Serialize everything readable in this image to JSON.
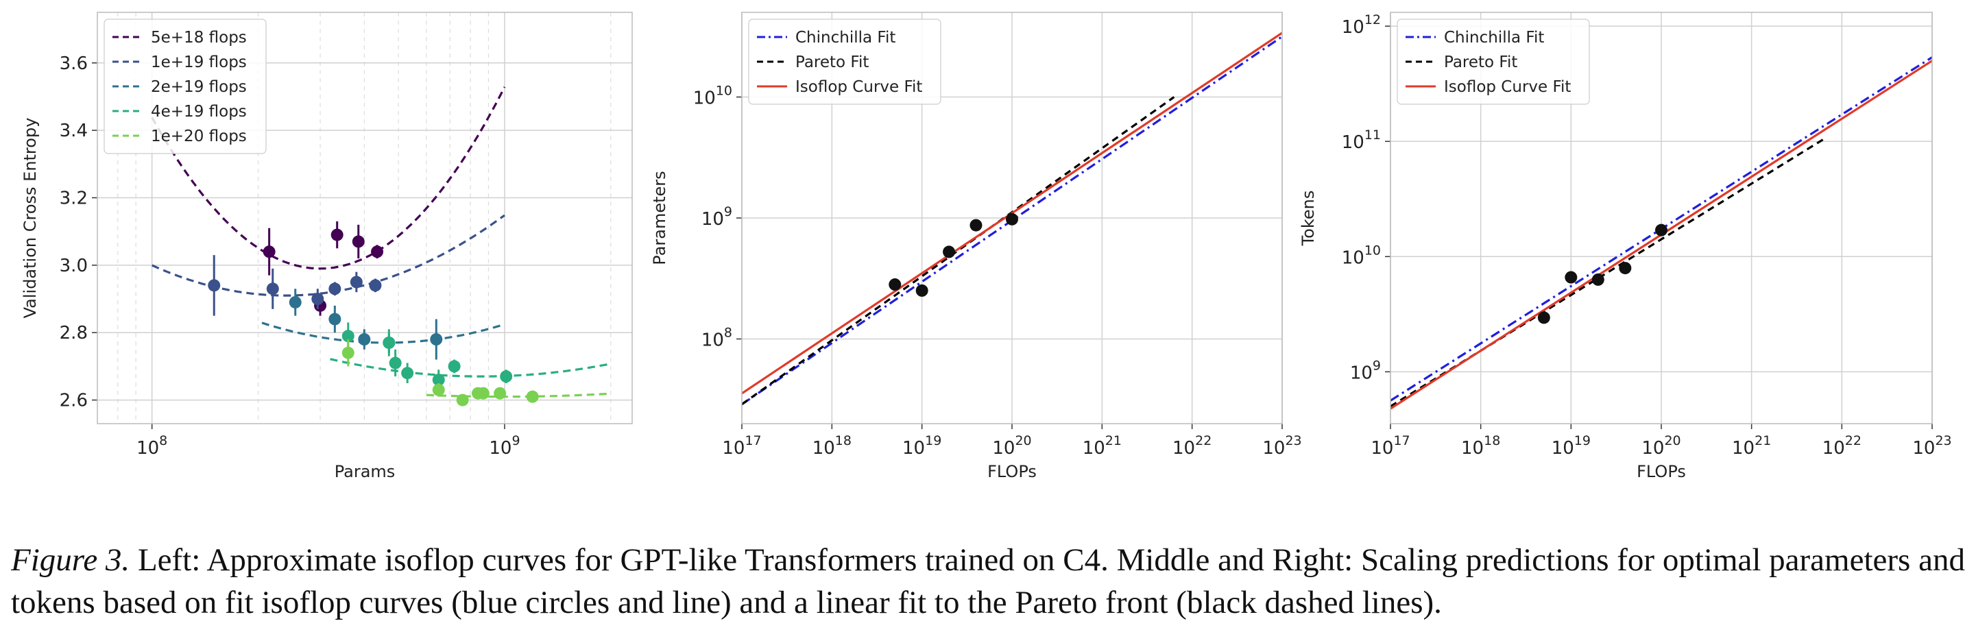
{
  "caption": {
    "lead": "Figure 3.",
    "text": " Left: Approximate isoflop curves for GPT-like Transformers trained on C4. Middle and Right: Scaling predictions for optimal parameters and tokens based on fit isoflop curves (blue circles and line) and a linear fit to the Pareto front (black dashed lines)."
  },
  "chart_data": [
    {
      "type": "scatter",
      "title": "",
      "xlabel": "Params",
      "ylabel": "Validation Cross Entropy",
      "xscale": "log",
      "yscale": "linear",
      "xlim": [
        70000000,
        2300000000
      ],
      "ylim": [
        2.53,
        3.75
      ],
      "xticks": [
        {
          "value": 100000000,
          "base": "10",
          "exp": "8"
        },
        {
          "value": 1000000000,
          "base": "10",
          "exp": "9"
        }
      ],
      "yticks": [
        2.6,
        2.8,
        3.0,
        3.2,
        3.4,
        3.6
      ],
      "ytick_labels": [
        "2.6",
        "2.8",
        "3.0",
        "3.2",
        "3.4",
        "3.6"
      ],
      "grid": true,
      "legend": "upper-left",
      "series": [
        {
          "name": "5e+18 flops",
          "color": "#440154",
          "curve": {
            "x0": 300000000,
            "y0": 2.99,
            "k": 1.97,
            "xmin": 100000000,
            "xmax": 1000000000
          },
          "points": [
            {
              "x": 215000000,
              "y": 3.04,
              "err": 0.07
            },
            {
              "x": 300000000,
              "y": 2.88,
              "err": 0.03
            },
            {
              "x": 335000000,
              "y": 3.09,
              "err": 0.04
            },
            {
              "x": 385000000,
              "y": 3.07,
              "err": 0.05
            },
            {
              "x": 435000000,
              "y": 3.04,
              "err": 0.02
            }
          ]
        },
        {
          "name": "1e+19 flops",
          "color": "#3b518b",
          "curve": {
            "x0": 240000000,
            "y0": 2.91,
            "k": 0.62,
            "xmin": 100000000,
            "xmax": 1000000000
          },
          "points": [
            {
              "x": 150000000,
              "y": 2.94,
              "err": 0.09
            },
            {
              "x": 220000000,
              "y": 2.93,
              "err": 0.06
            },
            {
              "x": 295000000,
              "y": 2.9,
              "err": 0.03
            },
            {
              "x": 330000000,
              "y": 2.93,
              "err": 0.02
            },
            {
              "x": 380000000,
              "y": 2.95,
              "err": 0.03
            },
            {
              "x": 430000000,
              "y": 2.94,
              "err": 0.02
            }
          ]
        },
        {
          "name": "2e+19 flops",
          "color": "#2c728e",
          "curve": {
            "x0": 460000000,
            "y0": 2.77,
            "k": 0.48,
            "xmin": 205000000,
            "xmax": 1000000000
          },
          "points": [
            {
              "x": 255000000,
              "y": 2.89,
              "err": 0.04
            },
            {
              "x": 330000000,
              "y": 2.84,
              "err": 0.04
            },
            {
              "x": 400000000,
              "y": 2.78,
              "err": 0.03
            },
            {
              "x": 470000000,
              "y": 2.77,
              "err": 0.03
            },
            {
              "x": 640000000,
              "y": 2.78,
              "err": 0.06
            }
          ]
        },
        {
          "name": "4e+19 flops",
          "color": "#29ae80",
          "curve": {
            "x0": 860000000,
            "y0": 2.67,
            "k": 0.28,
            "xmin": 320000000,
            "xmax": 2000000000
          },
          "points": [
            {
              "x": 360000000,
              "y": 2.79,
              "err": 0.04
            },
            {
              "x": 470000000,
              "y": 2.77,
              "err": 0.04
            },
            {
              "x": 490000000,
              "y": 2.71,
              "err": 0.04
            },
            {
              "x": 530000000,
              "y": 2.68,
              "err": 0.03
            },
            {
              "x": 650000000,
              "y": 2.66,
              "err": 0.03
            },
            {
              "x": 720000000,
              "y": 2.7,
              "err": 0.02
            },
            {
              "x": 1010000000,
              "y": 2.67,
              "err": 0.02
            }
          ]
        },
        {
          "name": "1e+20 flops",
          "color": "#7ad151",
          "curve": {
            "x0": 1000000000,
            "y0": 2.61,
            "k": 0.1,
            "xmin": 600000000,
            "xmax": 2000000000
          },
          "points": [
            {
              "x": 360000000,
              "y": 2.74,
              "err": 0.04
            },
            {
              "x": 650000000,
              "y": 2.63,
              "err": 0.02
            },
            {
              "x": 760000000,
              "y": 2.6,
              "err": 0.01
            },
            {
              "x": 840000000,
              "y": 2.62,
              "err": 0.01
            },
            {
              "x": 870000000,
              "y": 2.62,
              "err": 0.01
            },
            {
              "x": 970000000,
              "y": 2.62,
              "err": 0.01
            },
            {
              "x": 1200000000,
              "y": 2.61,
              "err": 0.01
            }
          ]
        }
      ]
    },
    {
      "type": "line",
      "title": "",
      "xlabel": "FLOPs",
      "ylabel": "Parameters",
      "xscale": "log",
      "yscale": "log",
      "xlim_exp": [
        17,
        23
      ],
      "ylim_exp": [
        7.3,
        10.7
      ],
      "xtick_exps": [
        "17",
        "18",
        "19",
        "20",
        "21",
        "22",
        "23"
      ],
      "ytick_exps": [
        "8",
        "9",
        "10"
      ],
      "grid": true,
      "legend": "upper-left",
      "series": [
        {
          "name": "Chinchilla Fit",
          "color": "#1f1fdc",
          "dash": "dashdot",
          "x_exp": [
            17,
            23
          ],
          "y_exp": [
            7.46,
            10.5
          ]
        },
        {
          "name": "Pareto Fit",
          "color": "#000000",
          "dash": "dashed",
          "x_exp": [
            17,
            21.8
          ],
          "y_exp": [
            7.46,
            10.0
          ]
        },
        {
          "name": "Isoflop Curve Fit",
          "color": "#e03a2a",
          "dash": "solid",
          "x_exp": [
            17,
            23
          ],
          "y_exp": [
            7.55,
            10.53
          ]
        }
      ],
      "points": [
        {
          "x_exp": 18.7,
          "y_exp": 8.45
        },
        {
          "x_exp": 19.0,
          "y_exp": 8.4
        },
        {
          "x_exp": 19.3,
          "y_exp": 8.72
        },
        {
          "x_exp": 19.6,
          "y_exp": 8.94
        },
        {
          "x_exp": 20.0,
          "y_exp": 8.99
        }
      ]
    },
    {
      "type": "line",
      "title": "",
      "xlabel": "FLOPs",
      "ylabel": "Tokens",
      "xscale": "log",
      "yscale": "log",
      "xlim_exp": [
        17,
        23
      ],
      "ylim_exp": [
        8.55,
        12.12
      ],
      "xtick_exps": [
        "17",
        "18",
        "19",
        "20",
        "21",
        "22",
        "23"
      ],
      "ytick_exps": [
        "9",
        "10",
        "11",
        "12"
      ],
      "grid": true,
      "legend": "upper-left",
      "series": [
        {
          "name": "Chinchilla Fit",
          "color": "#1f1fdc",
          "dash": "dashdot",
          "x_exp": [
            17,
            23
          ],
          "y_exp": [
            8.75,
            11.73
          ]
        },
        {
          "name": "Pareto Fit",
          "color": "#000000",
          "dash": "dashed",
          "x_exp": [
            17,
            21.8
          ],
          "y_exp": [
            8.7,
            11.02
          ]
        },
        {
          "name": "Isoflop Curve Fit",
          "color": "#e03a2a",
          "dash": "solid",
          "x_exp": [
            17,
            23
          ],
          "y_exp": [
            8.68,
            11.7
          ]
        }
      ],
      "points": [
        {
          "x_exp": 18.7,
          "y_exp": 9.47
        },
        {
          "x_exp": 19.0,
          "y_exp": 9.82
        },
        {
          "x_exp": 19.3,
          "y_exp": 9.8
        },
        {
          "x_exp": 19.6,
          "y_exp": 9.9
        },
        {
          "x_exp": 20.0,
          "y_exp": 10.23
        }
      ]
    }
  ]
}
